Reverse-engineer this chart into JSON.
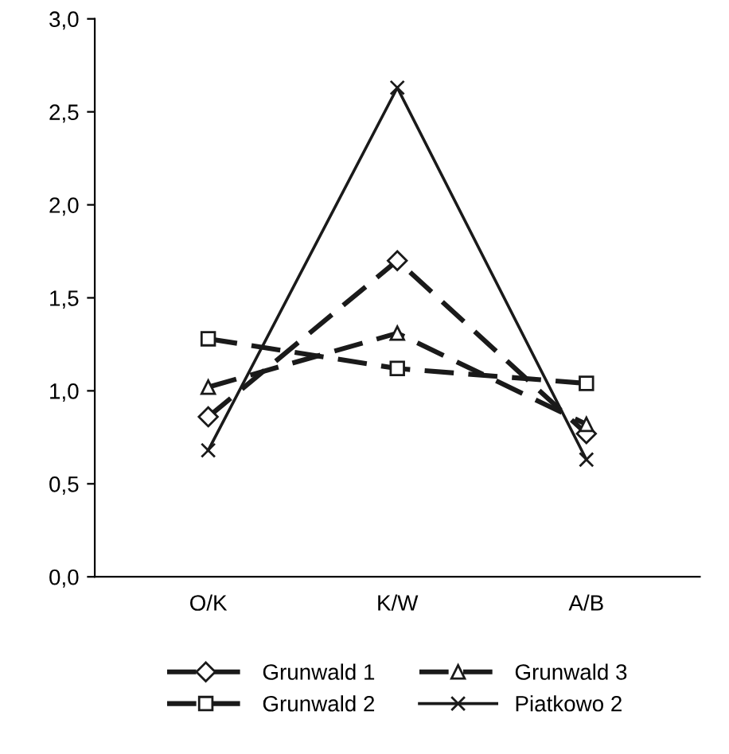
{
  "chart_data": {
    "type": "line",
    "categories": [
      "O/K",
      "K/W",
      "A/B"
    ],
    "series": [
      {
        "name": "Grunwald 1",
        "color": "#1a1a1a",
        "values": [
          0.86,
          1.7,
          0.77
        ],
        "marker": "diamond",
        "line_style": "dashed"
      },
      {
        "name": "Grunwald 2",
        "color": "#1a1a1a",
        "values": [
          1.28,
          1.12,
          1.04
        ],
        "marker": "square",
        "line_style": "dashed"
      },
      {
        "name": "Grunwald 3",
        "color": "#1a1a1a",
        "values": [
          1.02,
          1.31,
          0.82
        ],
        "marker": "triangle",
        "line_style": "dashed"
      },
      {
        "name": "Piatkowo 2",
        "color": "#1a1a1a",
        "values": [
          0.68,
          2.63,
          0.63
        ],
        "marker": "cross",
        "line_style": "solid"
      }
    ],
    "ylim": [
      0,
      3
    ],
    "yticks": [
      {
        "value": 0,
        "label": "0,0"
      },
      {
        "value": 0.5,
        "label": "0,5"
      },
      {
        "value": 1,
        "label": "1,0"
      },
      {
        "value": 1.5,
        "label": "1,5"
      },
      {
        "value": 2,
        "label": "2,0"
      },
      {
        "value": 2.5,
        "label": "2,5"
      },
      {
        "value": 3,
        "label": "3,0"
      }
    ],
    "grid": false,
    "legend": "bottom"
  }
}
